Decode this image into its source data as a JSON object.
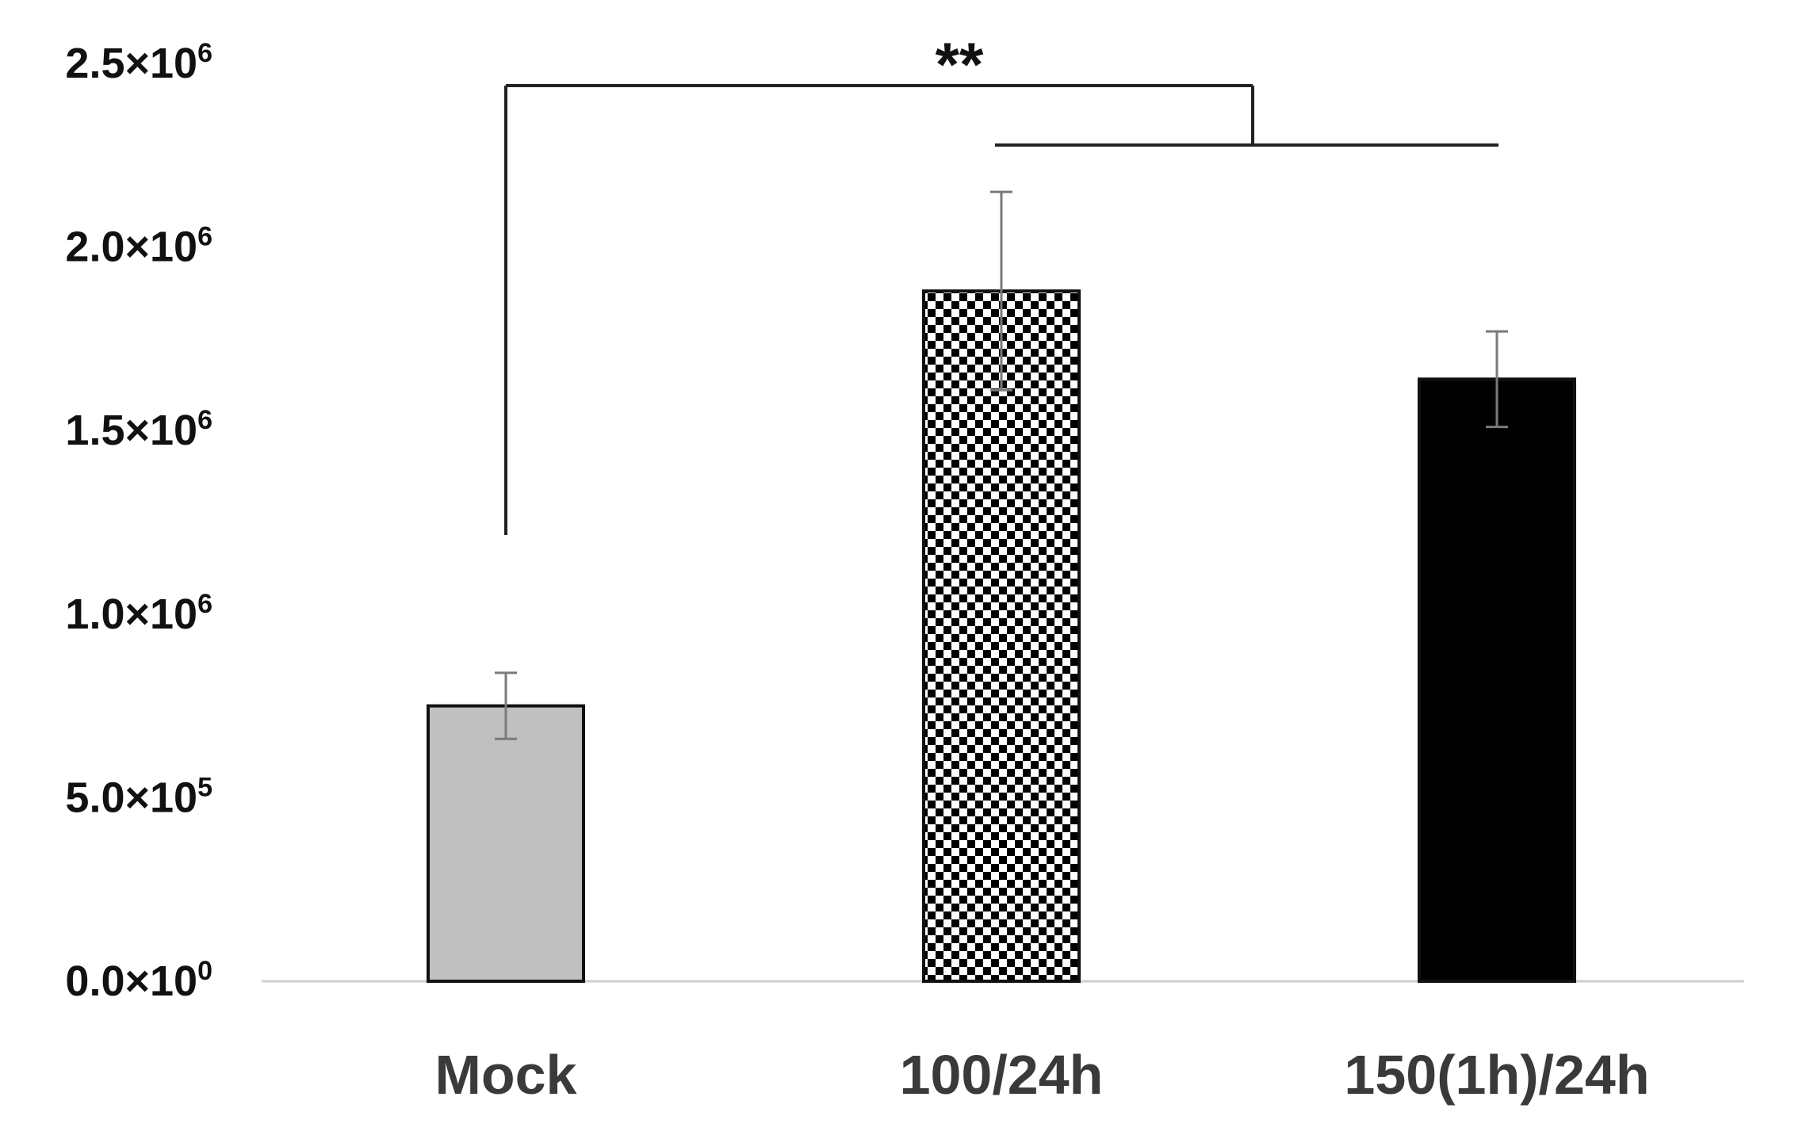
{
  "chart_data": {
    "type": "bar",
    "title": "",
    "xlabel": "",
    "ylabel": "",
    "categories": [
      "Mock",
      "100/24h",
      "150(1h)/24h"
    ],
    "values": [
      750000,
      1880000,
      1640000
    ],
    "error": [
      90000,
      270000,
      130000
    ],
    "ylim": [
      0,
      2500000
    ],
    "yticks": [
      {
        "value": 0,
        "base": "0.0×10",
        "exp": "0"
      },
      {
        "value": 500000,
        "base": "5.0×10",
        "exp": "5"
      },
      {
        "value": 1000000,
        "base": "1.0×10",
        "exp": "6"
      },
      {
        "value": 1500000,
        "base": "1.5×10",
        "exp": "6"
      },
      {
        "value": 2000000,
        "base": "2.0×10",
        "exp": "6"
      },
      {
        "value": 2500000,
        "base": "2.5×10",
        "exp": "6"
      }
    ],
    "bar_fills": [
      "#c0c0c0",
      "checkerboard",
      "#000000"
    ],
    "grid": false,
    "legend": "none",
    "significance": {
      "label": "**",
      "from": "Mock",
      "to": [
        "100/24h",
        "150(1h)/24h"
      ]
    }
  }
}
